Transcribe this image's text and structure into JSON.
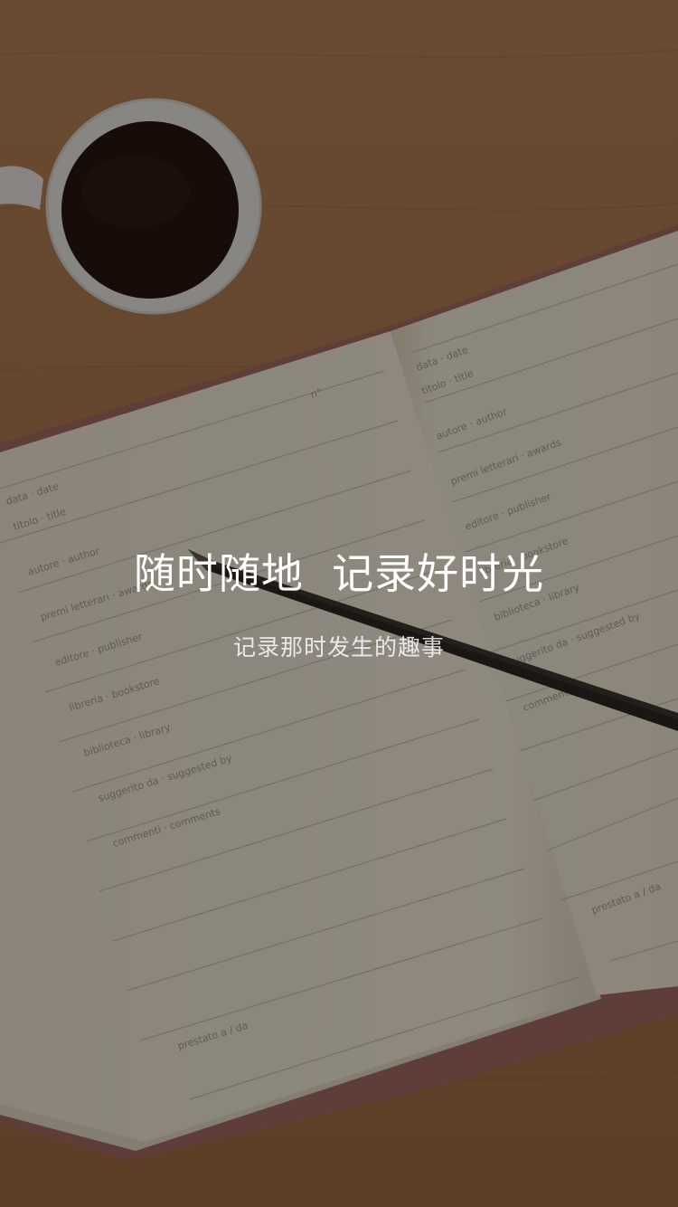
{
  "splash": {
    "headline": "随时随地  记录好时光",
    "subheadline": "记录那时发生的趣事"
  },
  "background": {
    "left_page_labels": [
      "data · date",
      "titolo · title",
      "autore · author",
      "premi letterari · awards",
      "editore · publisher",
      "libreria · bookstore",
      "biblioteca · library",
      "suggerito da · suggested by",
      "commenti · comments",
      "prestato a / da"
    ],
    "left_page_number": "n°",
    "right_page_labels": [
      "data · date",
      "titolo · title",
      "autore · author",
      "premi letterari · awards",
      "editore · publisher",
      "libreria · bookstore",
      "biblioteca · library",
      "suggerito da · suggested by",
      "commenti",
      "prestato a / da"
    ]
  },
  "colors": {
    "overlay": "rgba(0,0,0,0.42)",
    "text": "#ffffff",
    "desk": "#b07a4e",
    "paper": "#f3ead8",
    "coffee": "#2a1610"
  }
}
